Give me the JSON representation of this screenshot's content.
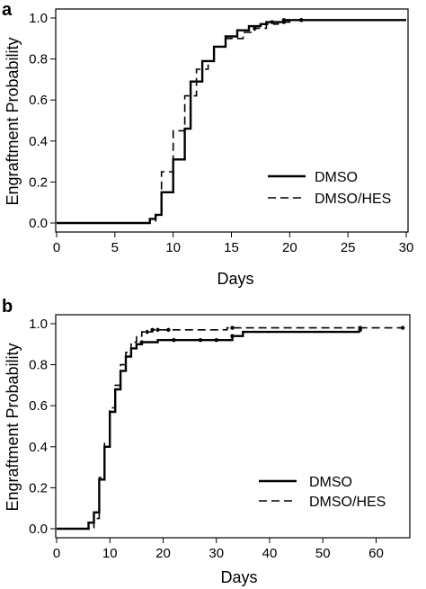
{
  "chart_data": [
    {
      "type": "line",
      "panel_label": "a",
      "xlabel": "Days",
      "ylabel": "Engraftment Probability",
      "xlim": [
        0,
        30
      ],
      "ylim": [
        0,
        1.0
      ],
      "xticks": [
        0,
        5,
        10,
        15,
        20,
        25,
        30
      ],
      "yticks": [
        0.0,
        0.2,
        0.4,
        0.6,
        0.8,
        1.0
      ],
      "x_tick_labels": [
        "0",
        "5",
        "10",
        "15",
        "20",
        "25",
        "30"
      ],
      "y_tick_labels": [
        "0.0",
        "0.2",
        "0.4",
        "0.6",
        "0.8",
        "1.0"
      ],
      "legend_position": "lower-right",
      "grid": false,
      "series": [
        {
          "name": "DMSO",
          "style": "solid",
          "steps": [
            [
              0,
              0.0
            ],
            [
              8,
              0.02
            ],
            [
              8.5,
              0.04
            ],
            [
              9,
              0.15
            ],
            [
              10,
              0.31
            ],
            [
              11,
              0.46
            ],
            [
              11.5,
              0.69
            ],
            [
              12.5,
              0.79
            ],
            [
              13.5,
              0.86
            ],
            [
              14.5,
              0.91
            ],
            [
              15.5,
              0.94
            ],
            [
              16.5,
              0.96
            ],
            [
              17.5,
              0.97
            ],
            [
              18,
              0.98
            ],
            [
              19.5,
              0.99
            ],
            [
              30,
              0.99
            ]
          ],
          "censored": [
            [
              18.5,
              0.98
            ],
            [
              19.5,
              0.99
            ],
            [
              21,
              0.99
            ]
          ]
        },
        {
          "name": "DMSO/HES",
          "style": "dashed",
          "steps": [
            [
              0,
              0.0
            ],
            [
              8,
              0.01
            ],
            [
              8.5,
              0.04
            ],
            [
              9,
              0.25
            ],
            [
              10,
              0.45
            ],
            [
              11,
              0.62
            ],
            [
              12,
              0.75
            ],
            [
              13,
              0.79
            ],
            [
              13.5,
              0.86
            ],
            [
              14.5,
              0.9
            ],
            [
              16,
              0.93
            ],
            [
              17,
              0.95
            ],
            [
              18,
              0.97
            ],
            [
              19,
              0.98
            ],
            [
              20,
              0.99
            ],
            [
              30,
              0.99
            ]
          ],
          "censored": [
            [
              17,
              0.95
            ],
            [
              19.5,
              0.98
            ],
            [
              21,
              0.99
            ]
          ]
        }
      ]
    },
    {
      "type": "line",
      "panel_label": "b",
      "xlabel": "Days",
      "ylabel": "Engraftment Probability",
      "xlim": [
        0,
        66
      ],
      "ylim": [
        0,
        1.0
      ],
      "xticks": [
        0,
        10,
        20,
        30,
        40,
        50,
        60
      ],
      "yticks": [
        0.0,
        0.2,
        0.4,
        0.6,
        0.8,
        1.0
      ],
      "x_tick_labels": [
        "0",
        "10",
        "20",
        "30",
        "40",
        "50",
        "60"
      ],
      "y_tick_labels": [
        "0.0",
        "0.2",
        "0.4",
        "0.6",
        "0.8",
        "1.0"
      ],
      "legend_position": "lower-right",
      "grid": false,
      "series": [
        {
          "name": "DMSO",
          "style": "solid",
          "steps": [
            [
              0,
              0.0
            ],
            [
              6,
              0.03
            ],
            [
              7,
              0.08
            ],
            [
              8,
              0.24
            ],
            [
              9,
              0.4
            ],
            [
              10,
              0.57
            ],
            [
              11,
              0.68
            ],
            [
              12,
              0.77
            ],
            [
              13,
              0.84
            ],
            [
              14,
              0.88
            ],
            [
              15,
              0.9
            ],
            [
              16,
              0.91
            ],
            [
              19,
              0.92
            ],
            [
              33,
              0.94
            ],
            [
              35,
              0.96
            ],
            [
              57,
              0.96
            ]
          ],
          "censored": [
            [
              16,
              0.91
            ],
            [
              22,
              0.92
            ],
            [
              27,
              0.92
            ],
            [
              30,
              0.92
            ],
            [
              33,
              0.94
            ],
            [
              57,
              0.97
            ]
          ]
        },
        {
          "name": "DMSO/HES",
          "style": "dashed",
          "steps": [
            [
              0,
              0.0
            ],
            [
              7,
              0.05
            ],
            [
              8,
              0.25
            ],
            [
              9,
              0.42
            ],
            [
              10,
              0.59
            ],
            [
              11,
              0.7
            ],
            [
              12,
              0.8
            ],
            [
              13,
              0.86
            ],
            [
              14,
              0.91
            ],
            [
              15,
              0.94
            ],
            [
              16,
              0.96
            ],
            [
              18,
              0.97
            ],
            [
              32,
              0.98
            ],
            [
              65,
              0.98
            ]
          ],
          "censored": [
            [
              17,
              0.96
            ],
            [
              18,
              0.97
            ],
            [
              19,
              0.97
            ],
            [
              21,
              0.97
            ],
            [
              33,
              0.98
            ],
            [
              57,
              0.98
            ],
            [
              65,
              0.98
            ]
          ]
        }
      ]
    }
  ]
}
